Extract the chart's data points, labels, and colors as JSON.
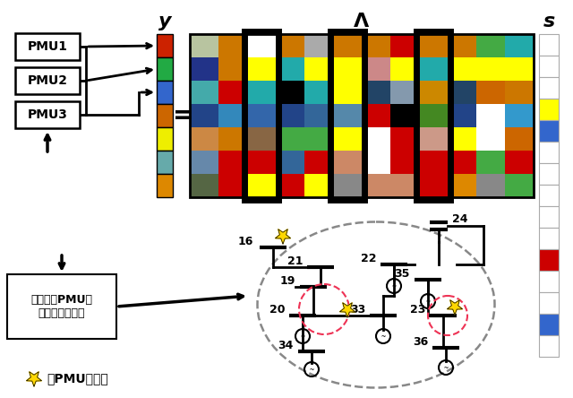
{
  "title_y": "y",
  "title_lambda": "Λ",
  "title_s": "s",
  "pmu_labels": [
    "PMU1",
    "PMU2",
    "PMU3"
  ],
  "y_colors": [
    "#cc2200",
    "#22aa44",
    "#3366cc",
    "#cc6600",
    "#eeee00",
    "#66aaaa",
    "#dd8800"
  ],
  "s_colors": [
    "#ffffff",
    "#ffffff",
    "#ffffff",
    "#ffff00",
    "#3366cc",
    "#ffffff",
    "#ffffff",
    "#ffffff",
    "#ffffff",
    "#ffffff",
    "#cc0000",
    "#ffffff",
    "#ffffff",
    "#3366cc",
    "#ffffff"
  ],
  "lambda_matrix": [
    [
      "#b8c4a0",
      "#cc7700",
      "#ffffff",
      "#cc7700",
      "#aaaaaa",
      "#cc7700",
      "#cc7700",
      "#cc0000",
      "#cc7700",
      "#cc7700",
      "#44aa44",
      "#22aaaa"
    ],
    [
      "#223388",
      "#cc7700",
      "#ffff00",
      "#22aaaa",
      "#ffff00",
      "#ffff00",
      "#cc8888",
      "#ffff00",
      "#22aaaa",
      "#ffff00",
      "#ffff00",
      "#ffff00"
    ],
    [
      "#44aaaa",
      "#cc0000",
      "#22aaaa",
      "#000000",
      "#22aaaa",
      "#ffff00",
      "#224466",
      "#33557799",
      "#cc8800",
      "#224466",
      "#cc6600",
      "#cc7700"
    ],
    [
      "#224488",
      "#3388bb",
      "#3366aa",
      "#224488",
      "#336699",
      "#5588aa",
      "#cc0000",
      "#000000",
      "#448822",
      "#224488",
      "#ffffff",
      "#3399cc"
    ],
    [
      "#cc8844",
      "#cc7700",
      "#886644",
      "#44aa44",
      "#44aa44",
      "#ffff00",
      "#ffffff",
      "#cc0000",
      "#cc9988",
      "#ffff00",
      "#ffffff",
      "#cc6600"
    ],
    [
      "#6688aa",
      "#cc0000",
      "#cc0000",
      "#336699",
      "#cc0000",
      "#cc8866",
      "#ffffff",
      "#cc0000",
      "#cc0000",
      "#cc0000",
      "#44aa44",
      "#cc0000"
    ],
    [
      "#556644",
      "#cc0000",
      "#ffff00",
      "#cc0000",
      "#ffff00",
      "#888888",
      "#cc8866",
      "#cc8866",
      "#cc0000",
      "#dd8800",
      "#888888",
      "#44aa44"
    ]
  ],
  "highlight_cols": [
    2,
    5,
    8
  ],
  "box_text": "电力系统PMU节\n点扰动数据收集",
  "legend_star_text": "：PMU布置点",
  "bg_color": "#ffffff"
}
